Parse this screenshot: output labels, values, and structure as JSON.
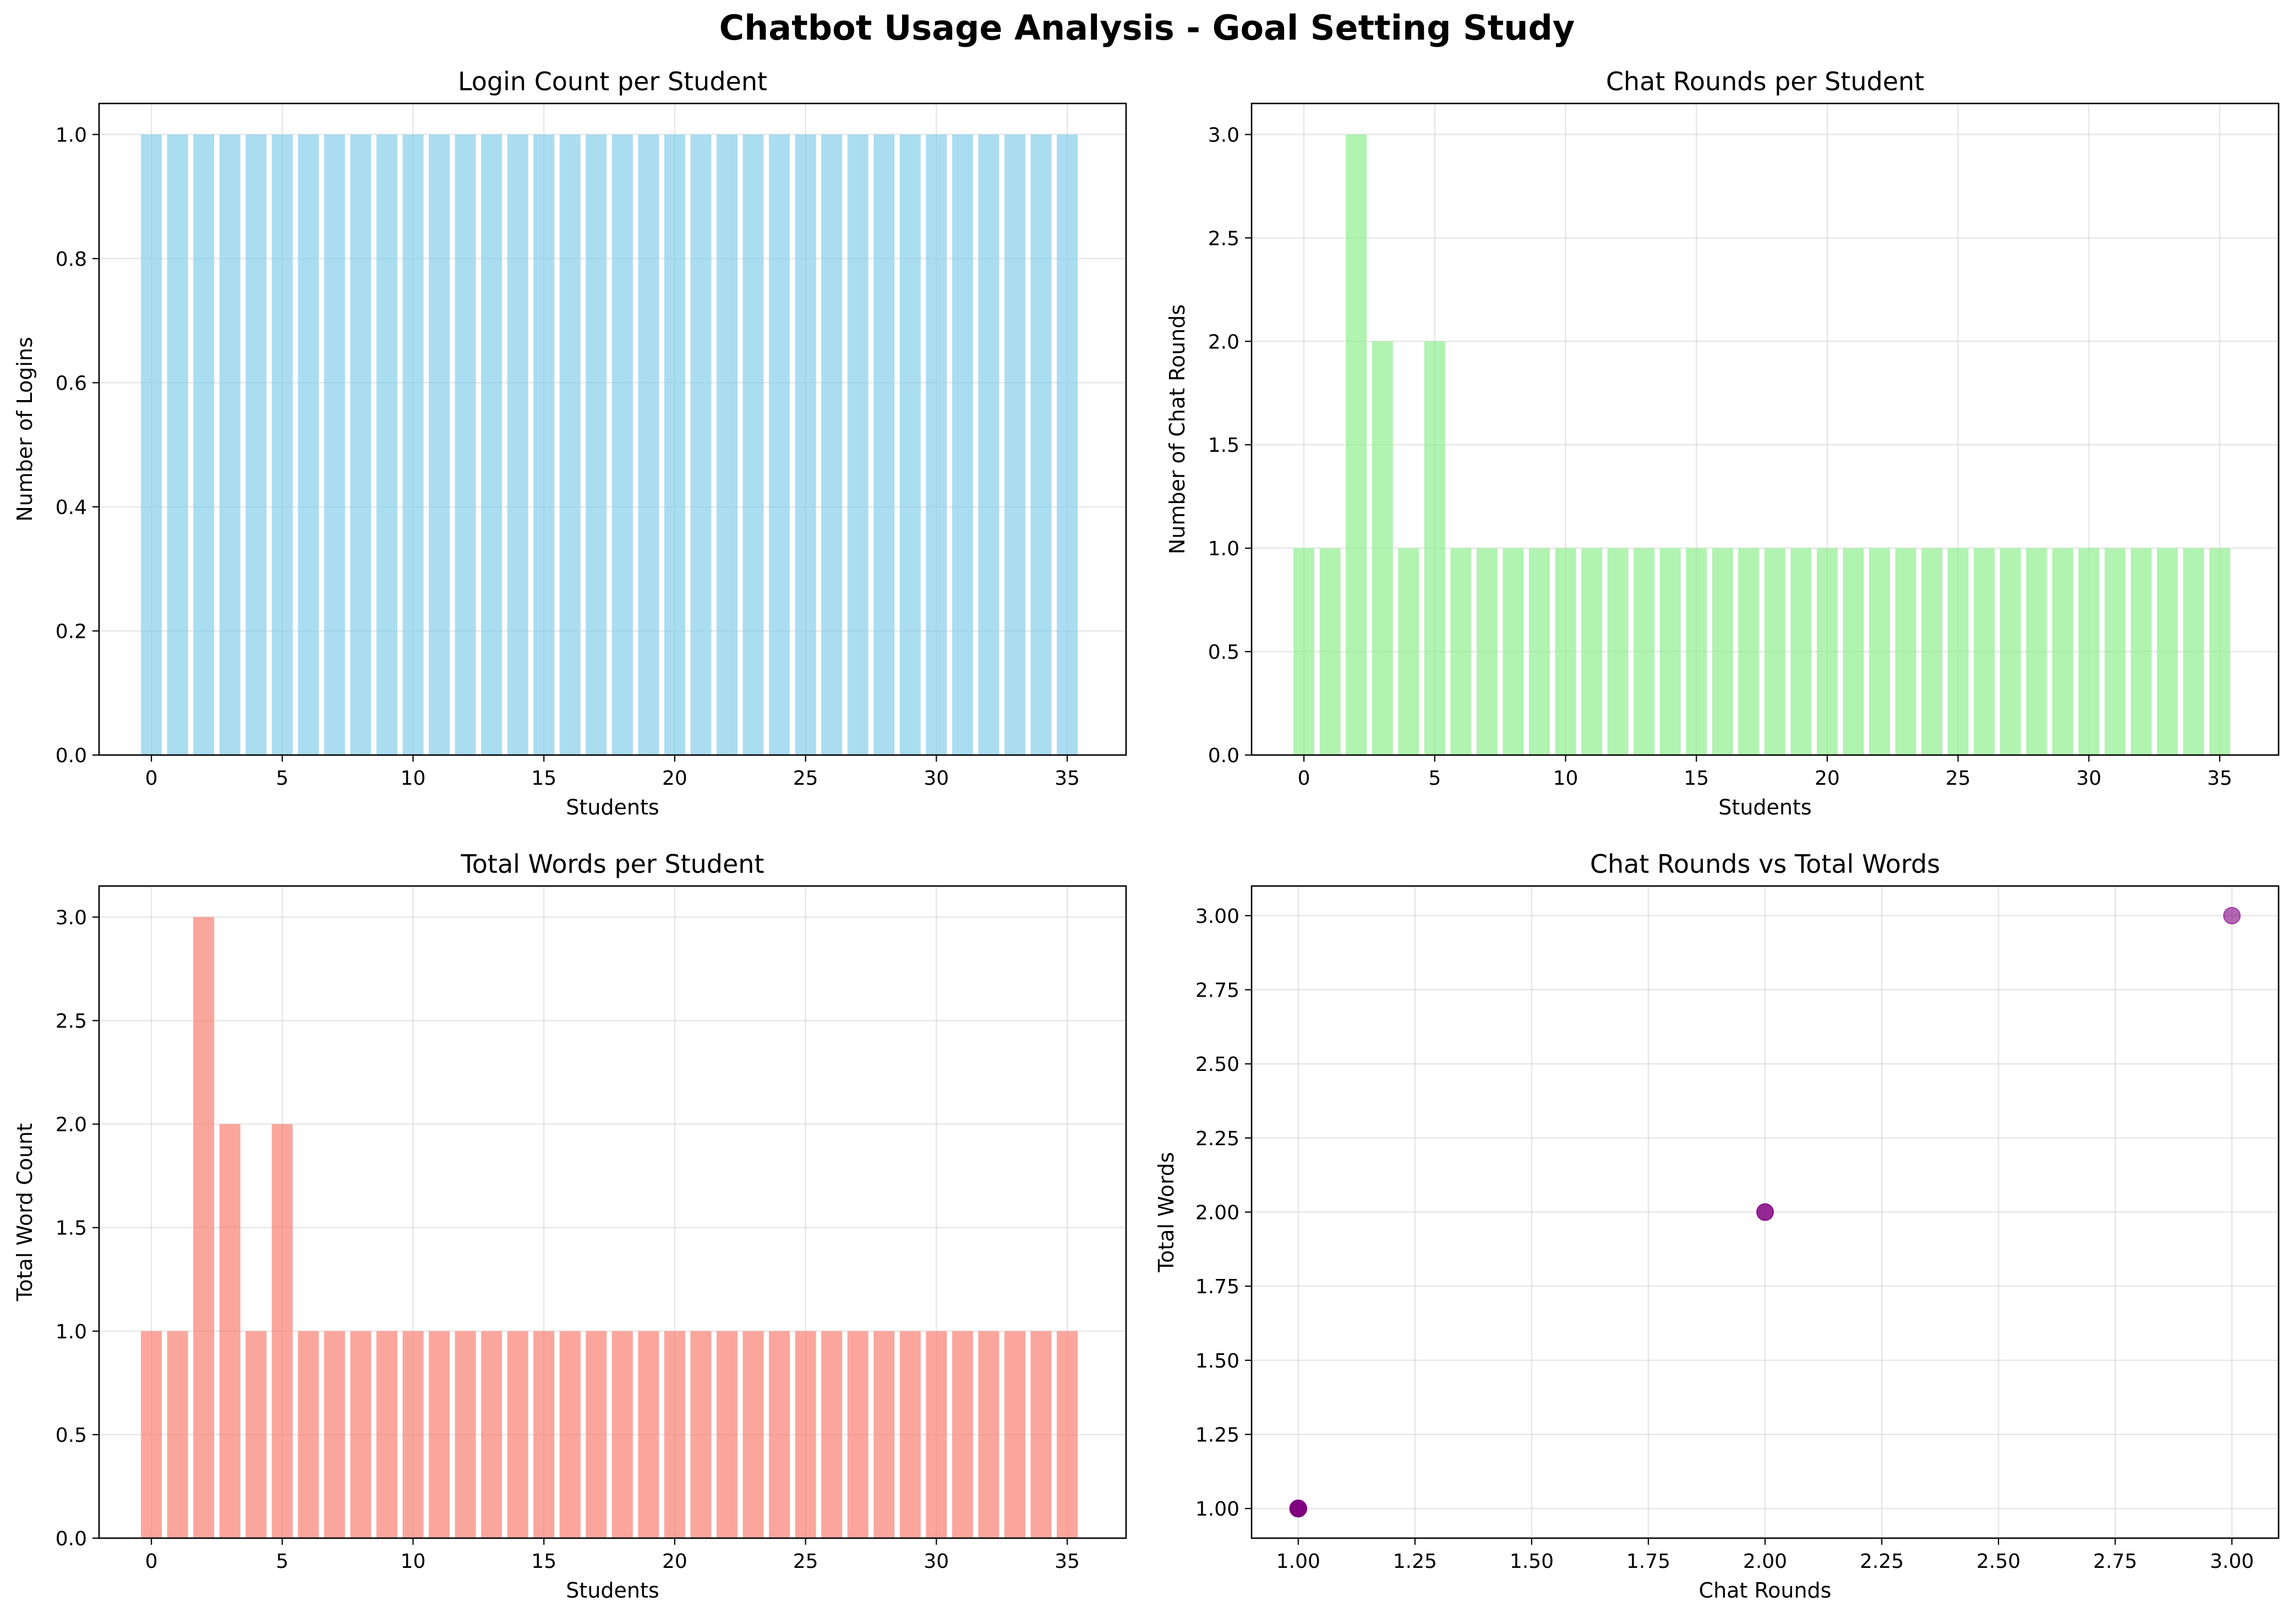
{
  "figure": {
    "title": "Chatbot Usage Analysis - Goal Setting Study"
  },
  "chart_data": [
    {
      "id": "logins",
      "type": "bar",
      "title": "Login Count per Student",
      "xlabel": "Students",
      "ylabel": "Number of Logins",
      "color": "#87CEEB",
      "categories": [
        0,
        1,
        2,
        3,
        4,
        5,
        6,
        7,
        8,
        9,
        10,
        11,
        12,
        13,
        14,
        15,
        16,
        17,
        18,
        19,
        20,
        21,
        22,
        23,
        24,
        25,
        26,
        27,
        28,
        29,
        30,
        31,
        32,
        33,
        34,
        35
      ],
      "values": [
        1,
        1,
        1,
        1,
        1,
        1,
        1,
        1,
        1,
        1,
        1,
        1,
        1,
        1,
        1,
        1,
        1,
        1,
        1,
        1,
        1,
        1,
        1,
        1,
        1,
        1,
        1,
        1,
        1,
        1,
        1,
        1,
        1,
        1,
        1,
        1
      ],
      "xlim": [
        -2,
        37.25
      ],
      "ylim": [
        0,
        1.05
      ],
      "xticks": [
        0,
        5,
        10,
        15,
        20,
        25,
        30,
        35
      ],
      "xtick_labels": [
        "0",
        "5",
        "10",
        "15",
        "20",
        "25",
        "30",
        "35"
      ],
      "yticks": [
        0,
        0.2,
        0.4,
        0.6,
        0.8,
        1.0
      ],
      "ytick_labels": [
        "0.0",
        "0.2",
        "0.4",
        "0.6",
        "0.8",
        "1.0"
      ],
      "grid": true
    },
    {
      "id": "chat_rounds",
      "type": "bar",
      "title": "Chat Rounds per Student",
      "xlabel": "Students",
      "ylabel": "Number of Chat Rounds",
      "color": "#90EE90",
      "categories": [
        0,
        1,
        2,
        3,
        4,
        5,
        6,
        7,
        8,
        9,
        10,
        11,
        12,
        13,
        14,
        15,
        16,
        17,
        18,
        19,
        20,
        21,
        22,
        23,
        24,
        25,
        26,
        27,
        28,
        29,
        30,
        31,
        32,
        33,
        34,
        35
      ],
      "values": [
        1,
        1,
        3,
        2,
        1,
        2,
        1,
        1,
        1,
        1,
        1,
        1,
        1,
        1,
        1,
        1,
        1,
        1,
        1,
        1,
        1,
        1,
        1,
        1,
        1,
        1,
        1,
        1,
        1,
        1,
        1,
        1,
        1,
        1,
        1,
        1
      ],
      "xlim": [
        -2,
        37.25
      ],
      "ylim": [
        0,
        3.15
      ],
      "xticks": [
        0,
        5,
        10,
        15,
        20,
        25,
        30,
        35
      ],
      "xtick_labels": [
        "0",
        "5",
        "10",
        "15",
        "20",
        "25",
        "30",
        "35"
      ],
      "yticks": [
        0,
        0.5,
        1.0,
        1.5,
        2.0,
        2.5,
        3.0
      ],
      "ytick_labels": [
        "0.0",
        "0.5",
        "1.0",
        "1.5",
        "2.0",
        "2.5",
        "3.0"
      ],
      "grid": true
    },
    {
      "id": "total_words",
      "type": "bar",
      "title": "Total Words per Student",
      "xlabel": "Students",
      "ylabel": "Total Word Count",
      "color": "#FA8072",
      "categories": [
        0,
        1,
        2,
        3,
        4,
        5,
        6,
        7,
        8,
        9,
        10,
        11,
        12,
        13,
        14,
        15,
        16,
        17,
        18,
        19,
        20,
        21,
        22,
        23,
        24,
        25,
        26,
        27,
        28,
        29,
        30,
        31,
        32,
        33,
        34,
        35
      ],
      "values": [
        1,
        1,
        3,
        2,
        1,
        2,
        1,
        1,
        1,
        1,
        1,
        1,
        1,
        1,
        1,
        1,
        1,
        1,
        1,
        1,
        1,
        1,
        1,
        1,
        1,
        1,
        1,
        1,
        1,
        1,
        1,
        1,
        1,
        1,
        1,
        1
      ],
      "xlim": [
        -2,
        37.25
      ],
      "ylim": [
        0,
        3.15
      ],
      "xticks": [
        0,
        5,
        10,
        15,
        20,
        25,
        30,
        35
      ],
      "xtick_labels": [
        "0",
        "5",
        "10",
        "15",
        "20",
        "25",
        "30",
        "35"
      ],
      "yticks": [
        0,
        0.5,
        1.0,
        1.5,
        2.0,
        2.5,
        3.0
      ],
      "ytick_labels": [
        "0.0",
        "0.5",
        "1.0",
        "1.5",
        "2.0",
        "2.5",
        "3.0"
      ],
      "grid": true
    },
    {
      "id": "scatter",
      "type": "scatter",
      "title": "Chat Rounds vs Total Words",
      "xlabel": "Chat Rounds",
      "ylabel": "Total Words",
      "color": "#800080",
      "x": [
        1,
        1,
        3,
        2,
        1,
        2,
        1,
        1,
        1,
        1,
        1,
        1,
        1,
        1,
        1,
        1,
        1,
        1,
        1,
        1,
        1,
        1,
        1,
        1,
        1,
        1,
        1,
        1,
        1,
        1,
        1,
        1,
        1,
        1,
        1,
        1
      ],
      "y": [
        1,
        1,
        3,
        2,
        1,
        2,
        1,
        1,
        1,
        1,
        1,
        1,
        1,
        1,
        1,
        1,
        1,
        1,
        1,
        1,
        1,
        1,
        1,
        1,
        1,
        1,
        1,
        1,
        1,
        1,
        1,
        1,
        1,
        1,
        1,
        1
      ],
      "xlim": [
        0.9,
        3.1
      ],
      "ylim": [
        0.9,
        3.1
      ],
      "xticks": [
        1.0,
        1.25,
        1.5,
        1.75,
        2.0,
        2.25,
        2.5,
        2.75,
        3.0
      ],
      "xtick_labels": [
        "1.00",
        "1.25",
        "1.50",
        "1.75",
        "2.00",
        "2.25",
        "2.50",
        "2.75",
        "3.00"
      ],
      "yticks": [
        1.0,
        1.25,
        1.5,
        1.75,
        2.0,
        2.25,
        2.5,
        2.75,
        3.0
      ],
      "ytick_labels": [
        "1.00",
        "1.25",
        "1.50",
        "1.75",
        "2.00",
        "2.25",
        "2.50",
        "2.75",
        "3.00"
      ],
      "grid": true
    }
  ]
}
